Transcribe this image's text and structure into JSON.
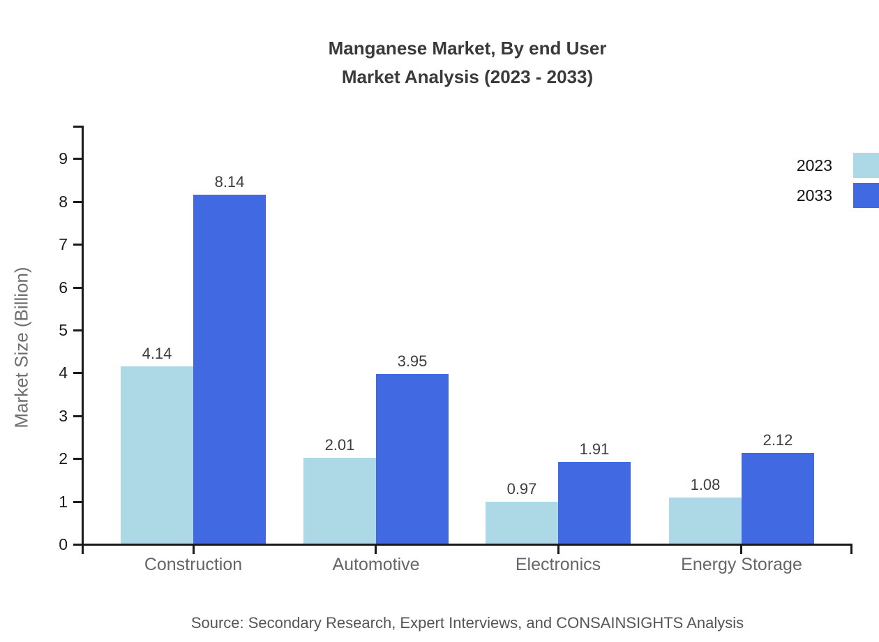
{
  "title": {
    "line1": "Manganese Market, By end User",
    "line2": "Market Analysis (2023 - 2033)"
  },
  "source": {
    "text": "Source: Secondary Research, Expert Interviews, and CONSAINSIGHTS Analysis"
  },
  "chart_data": {
    "type": "bar",
    "title": "Manganese Market, By end User Market Analysis (2023 - 2033)",
    "categories": [
      "Construction",
      "Automotive",
      "Electronics",
      "Energy Storage"
    ],
    "series": [
      {
        "name": "2023",
        "color": "#ADD8E6",
        "values": [
          4.14,
          2.01,
          0.97,
          1.08
        ]
      },
      {
        "name": "2033",
        "color": "#4169E1",
        "values": [
          8.14,
          3.95,
          1.91,
          2.12
        ]
      }
    ],
    "xlabel": "",
    "ylabel": "Market Size (Billion)",
    "yticks": [
      0,
      1,
      2,
      3,
      4,
      5,
      6,
      7,
      8,
      9
    ],
    "ylim": [
      0,
      9.78
    ],
    "grid": false,
    "legend_position": "top-right",
    "value_labels_shown": true,
    "value_label_format": "0.00",
    "axis_color": "#1a1a1a"
  }
}
